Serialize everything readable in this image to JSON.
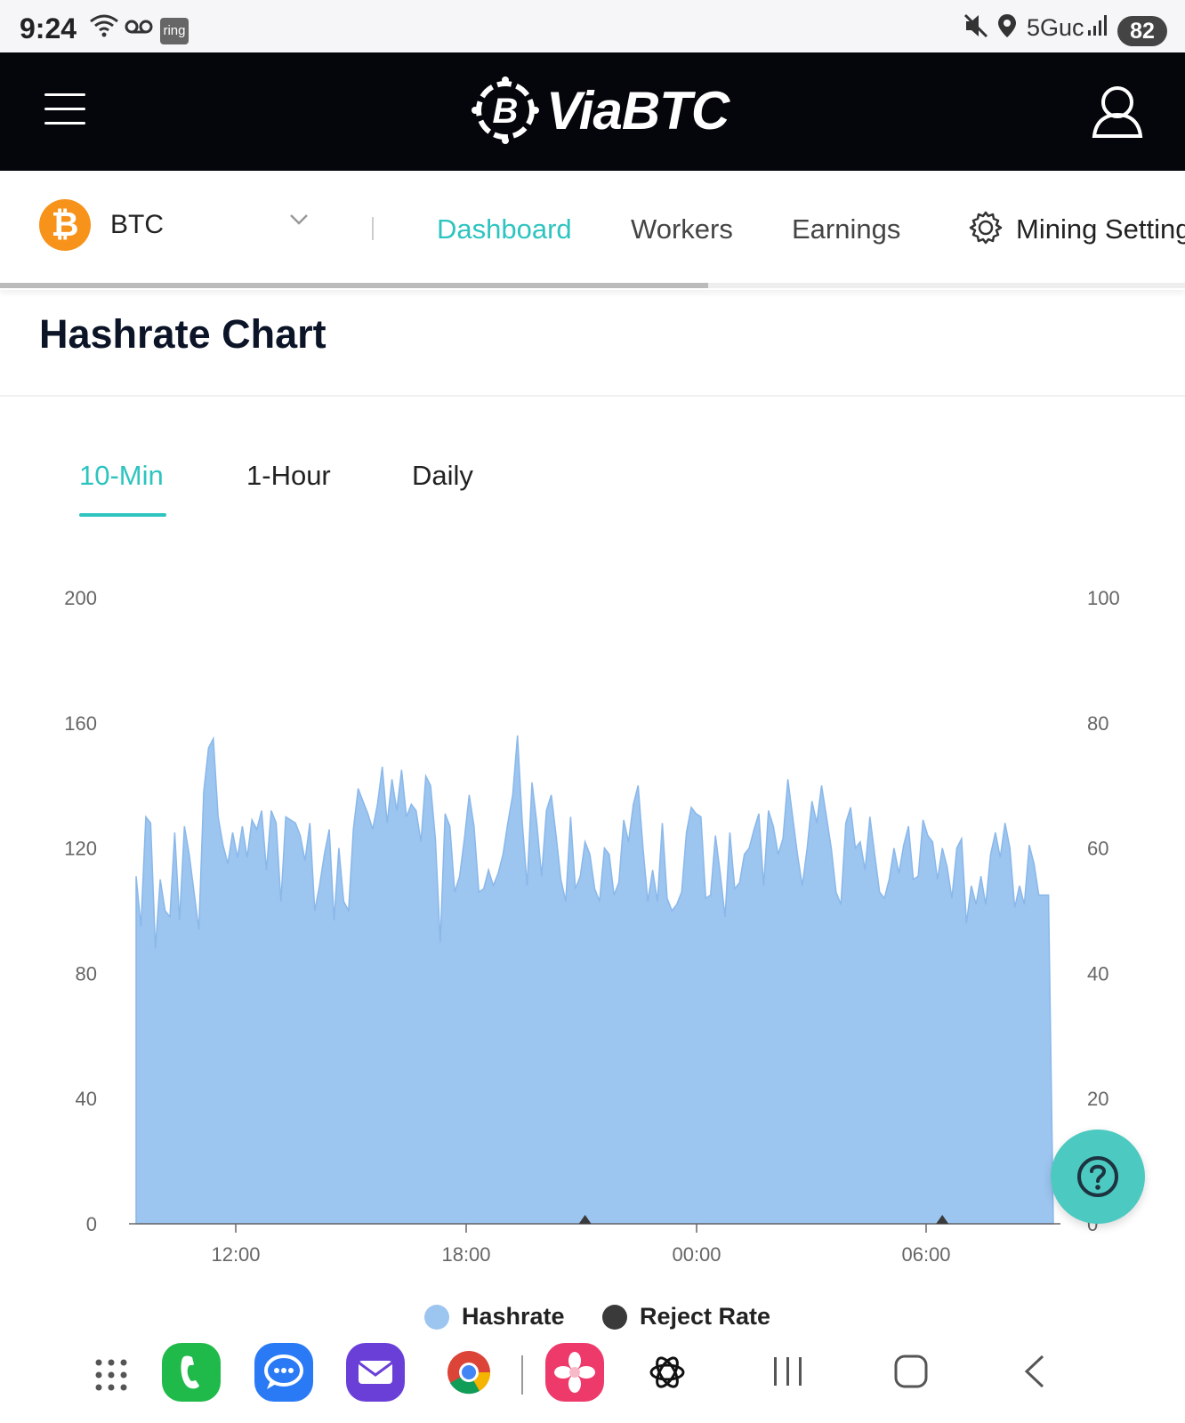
{
  "status_bar": {
    "time": "9:24",
    "ring_label": "ring",
    "network": "5Guc",
    "battery": "82"
  },
  "header": {
    "logo_text": "ViaBTC"
  },
  "subnav": {
    "coin": "BTC",
    "coin_symbol": "₿",
    "tabs": [
      {
        "label": "Dashboard",
        "active": true
      },
      {
        "label": "Workers",
        "active": false
      },
      {
        "label": "Earnings",
        "active": false
      },
      {
        "label": "Mining Setting",
        "active": false
      }
    ]
  },
  "section": {
    "title": "Hashrate Chart"
  },
  "range_tabs": [
    {
      "label": "10-Min",
      "active": true
    },
    {
      "label": "1-Hour",
      "active": false
    },
    {
      "label": "Daily",
      "active": false
    }
  ],
  "chart_data": {
    "type": "area",
    "title": "Hashrate Chart",
    "x_ticks": [
      "12:00",
      "18:00",
      "00:00",
      "06:00"
    ],
    "y_left_ticks": [
      0,
      40,
      80,
      120,
      160,
      200
    ],
    "y_right_ticks": [
      0,
      20,
      40,
      60,
      80,
      100
    ],
    "ylim_left": [
      0,
      200
    ],
    "ylim_right": [
      0,
      100
    ],
    "legend": "bottom-center",
    "series": [
      {
        "name": "Hashrate",
        "color": "#9cc5f0",
        "axis": "left",
        "values": [
          111,
          95,
          130,
          128,
          88,
          110,
          100,
          98,
          125,
          97,
          127,
          118,
          106,
          94,
          138,
          152,
          155,
          130,
          121,
          115,
          125,
          117,
          127,
          117,
          129,
          126,
          132,
          113,
          132,
          128,
          103,
          130,
          129,
          128,
          124,
          116,
          128,
          100,
          108,
          118,
          126,
          97,
          120,
          103,
          100,
          126,
          139,
          135,
          131,
          126,
          134,
          146,
          128,
          142,
          132,
          145,
          130,
          134,
          132,
          122,
          143,
          140,
          123,
          90,
          131,
          127,
          106,
          111,
          123,
          137,
          127,
          106,
          107,
          113,
          108,
          112,
          118,
          128,
          137,
          156,
          128,
          108,
          141,
          128,
          111,
          132,
          137,
          124,
          110,
          103,
          130,
          107,
          111,
          122,
          118,
          107,
          103,
          120,
          118,
          105,
          109,
          129,
          122,
          134,
          140,
          120,
          103,
          113,
          103,
          128,
          104,
          100,
          102,
          106,
          125,
          133,
          131,
          130,
          104,
          105,
          124,
          112,
          98,
          125,
          107,
          109,
          118,
          120,
          126,
          131,
          108,
          132,
          127,
          118,
          123,
          142,
          130,
          118,
          108,
          120,
          135,
          128,
          140,
          130,
          120,
          106,
          102,
          128,
          133,
          120,
          122,
          113,
          130,
          118,
          106,
          104,
          110,
          120,
          112,
          121,
          127,
          110,
          111,
          129,
          124,
          122,
          110,
          120,
          114,
          104,
          120,
          123,
          96,
          108,
          102,
          111,
          102,
          118,
          125,
          117,
          128,
          120,
          101,
          108,
          102,
          121,
          115,
          105,
          105,
          105,
          0
        ]
      },
      {
        "name": "Reject Rate",
        "color": "#3a3a3a",
        "axis": "right",
        "values": [
          0,
          0,
          0,
          0,
          0,
          0,
          0,
          0,
          0,
          0,
          0,
          0,
          0,
          0,
          0,
          0,
          0,
          0,
          0,
          0,
          0,
          0,
          0,
          0,
          0,
          0,
          0,
          0,
          0,
          0,
          0,
          0,
          0,
          0,
          0,
          0,
          0,
          0,
          0,
          0,
          0,
          0,
          0,
          0,
          0,
          0,
          0,
          0,
          0,
          0,
          0,
          0,
          0,
          0,
          0,
          0,
          0,
          0,
          0,
          0,
          0,
          0,
          0,
          0,
          0,
          0,
          0,
          0,
          0,
          0,
          0,
          0,
          0,
          0,
          0,
          0,
          0,
          0,
          0,
          0,
          0,
          0,
          0,
          0,
          0,
          0,
          0,
          0,
          0,
          0,
          0,
          0,
          0,
          0,
          0,
          0,
          0,
          0,
          0,
          0,
          0,
          0,
          0,
          0,
          0,
          0,
          0,
          0,
          0,
          0,
          0,
          0,
          0,
          0,
          0,
          0,
          0,
          0,
          0,
          0,
          0,
          0,
          0,
          0,
          0,
          0,
          0,
          0,
          0,
          0,
          0,
          0,
          0,
          0,
          0,
          0,
          0,
          0,
          0,
          0,
          0,
          0,
          0,
          0,
          0,
          0,
          0,
          0,
          0,
          0,
          0,
          0,
          0,
          0,
          0,
          0,
          0,
          0,
          0,
          0,
          0,
          0,
          0,
          0,
          0,
          0,
          0,
          0,
          0,
          0,
          0,
          0,
          0,
          0,
          0,
          0,
          0,
          0,
          0,
          0,
          0,
          0,
          0,
          0,
          0,
          0,
          0,
          0,
          0,
          0,
          0,
          0,
          0
        ]
      }
    ],
    "reject_markers_index": [
      93,
      167
    ]
  },
  "colors": {
    "accent": "#2ec4c0",
    "hashrate": "#9cc5f0",
    "reject": "#3a3a3a",
    "header_bg": "#04060c",
    "help_button": "#4cc9c0"
  },
  "help_button": {
    "icon": "question-icon"
  }
}
